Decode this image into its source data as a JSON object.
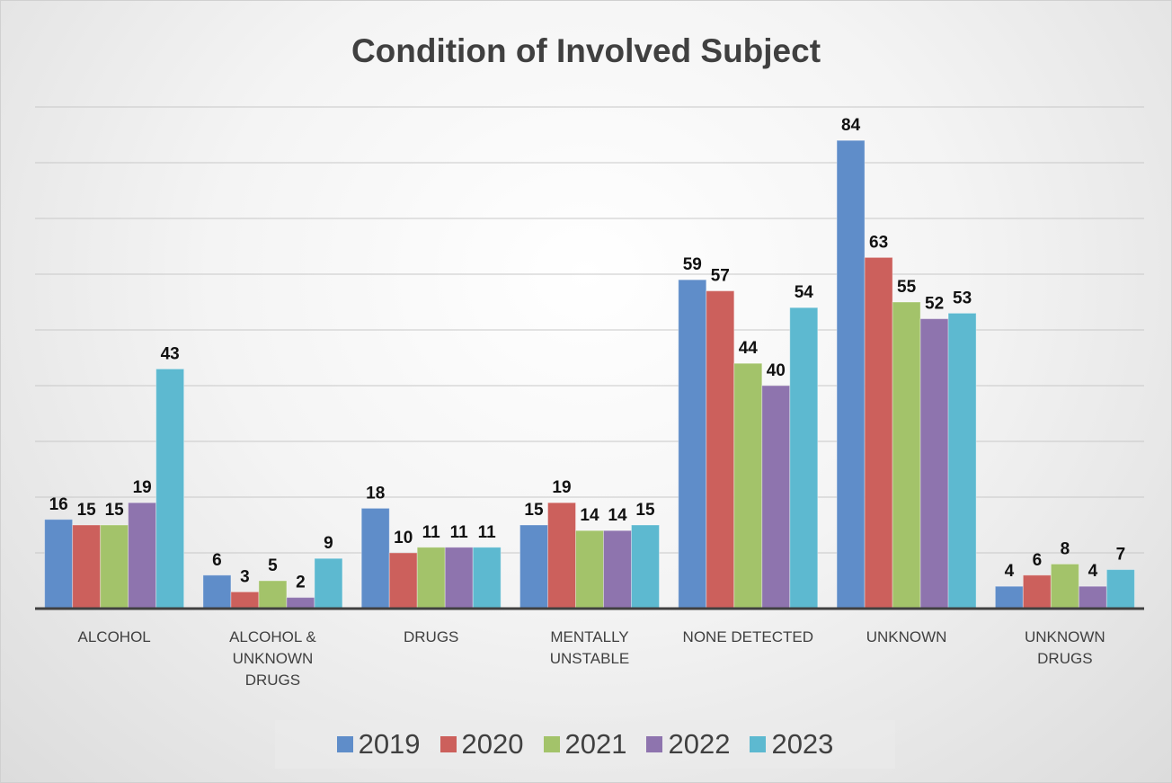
{
  "chart_data": {
    "type": "bar",
    "title": "Condition of Involved Subject",
    "categories": [
      "ALCOHOL",
      "ALCOHOL & UNKNOWN DRUGS",
      "DRUGS",
      "MENTALLY UNSTABLE",
      "NONE DETECTED",
      "UNKNOWN",
      "UNKNOWN DRUGS"
    ],
    "series": [
      {
        "name": "2019",
        "color": "#5f8dc9",
        "values": [
          16,
          6,
          18,
          15,
          59,
          84,
          4
        ]
      },
      {
        "name": "2020",
        "color": "#cc605c",
        "values": [
          15,
          3,
          10,
          19,
          57,
          63,
          6
        ]
      },
      {
        "name": "2021",
        "color": "#a3c36a",
        "values": [
          15,
          5,
          11,
          14,
          44,
          55,
          8
        ]
      },
      {
        "name": "2022",
        "color": "#8e74ae",
        "values": [
          19,
          2,
          11,
          14,
          40,
          52,
          4
        ]
      },
      {
        "name": "2023",
        "color": "#5db9d0",
        "values": [
          43,
          9,
          11,
          15,
          54,
          53,
          7
        ]
      }
    ],
    "ylim": [
      0,
      90
    ],
    "yticks": [
      0,
      10,
      20,
      30,
      40,
      50,
      60,
      70,
      80,
      90
    ],
    "grid": true,
    "legend": "bottom"
  }
}
